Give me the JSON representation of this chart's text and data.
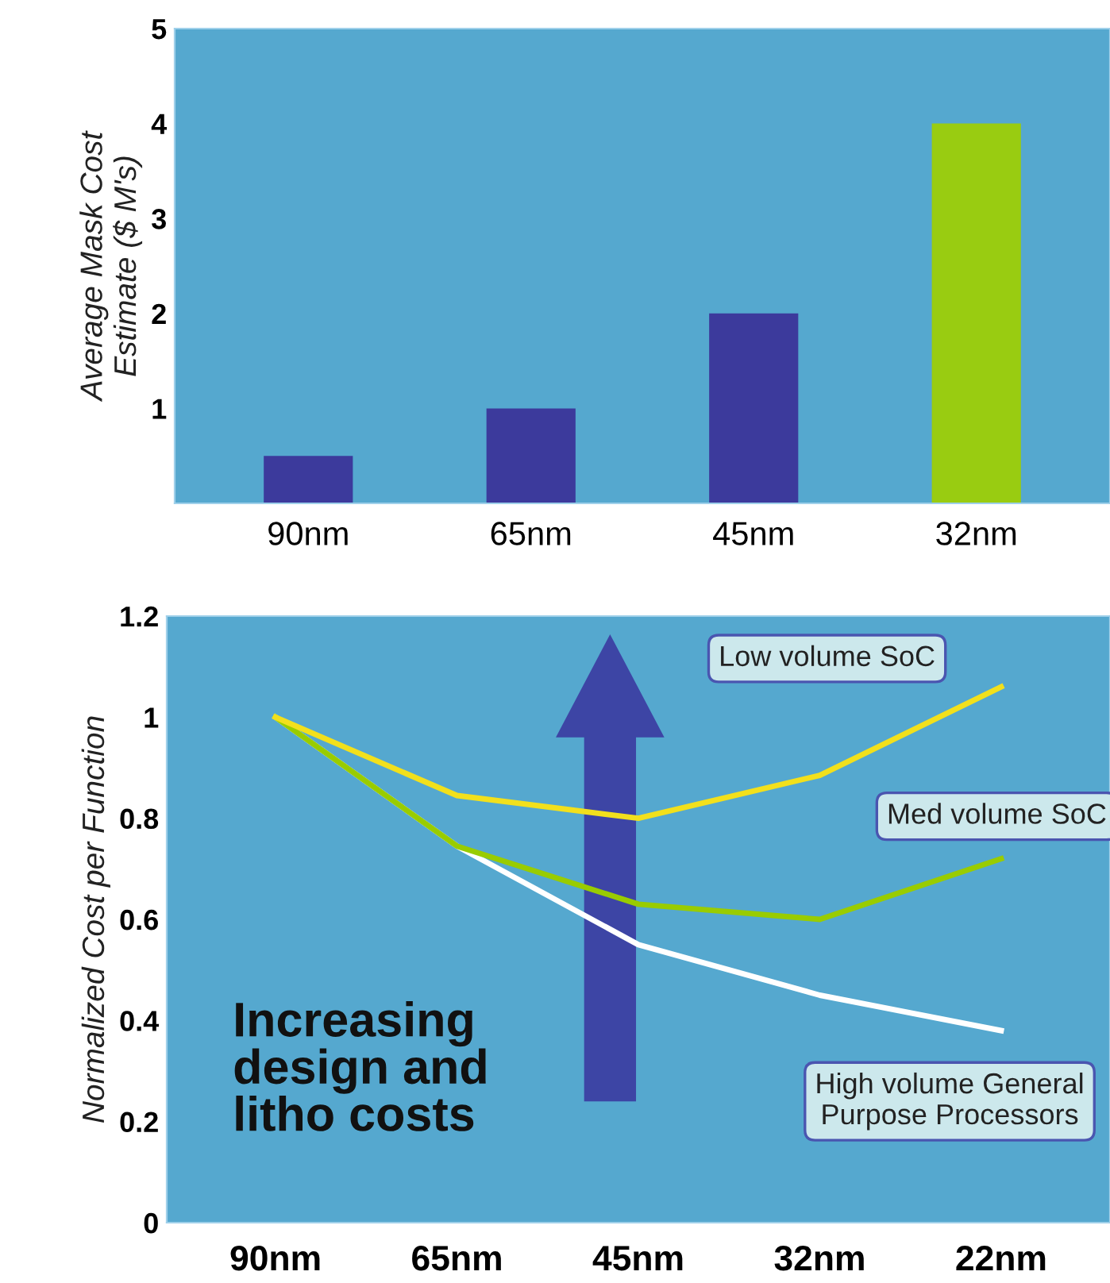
{
  "chart_data": [
    {
      "type": "bar",
      "ylabel": "Average Mask Cost\nEstimate ($ M's)",
      "categories": [
        "90nm",
        "65nm",
        "45nm",
        "32nm"
      ],
      "values": [
        0.5,
        1,
        2,
        4
      ],
      "colors": [
        "#3c3a9c",
        "#3c3a9c",
        "#3c3a9c",
        "#99cc11"
      ],
      "ylim": [
        0,
        5
      ],
      "yticks": [
        1,
        2,
        3,
        4,
        5
      ],
      "grid": false
    },
    {
      "type": "line",
      "ylabel": "Normalized Cost per Function",
      "categories": [
        "90nm",
        "65nm",
        "45nm",
        "32nm",
        "22nm"
      ],
      "ylim": [
        0,
        1.2
      ],
      "yticks": [
        0,
        0.2,
        0.4,
        0.6,
        0.8,
        1,
        1.2
      ],
      "grid": false,
      "marker": "none",
      "line_style": "solid",
      "series": [
        {
          "name": "Low volume SoC",
          "color": "#f2e01c",
          "values": [
            1,
            0.845,
            0.8,
            0.885,
            1.06
          ]
        },
        {
          "name": "Med volume SoC",
          "color": "#99cc00",
          "values": [
            1,
            0.745,
            0.63,
            0.6,
            0.72
          ]
        },
        {
          "name": "High volume General\nPurpose Processors",
          "color": "#ffffff",
          "values": [
            1,
            0.745,
            0.55,
            0.45,
            0.38
          ]
        }
      ],
      "annotations": [
        "Increasing\ndesign and\nlitho costs"
      ]
    }
  ]
}
